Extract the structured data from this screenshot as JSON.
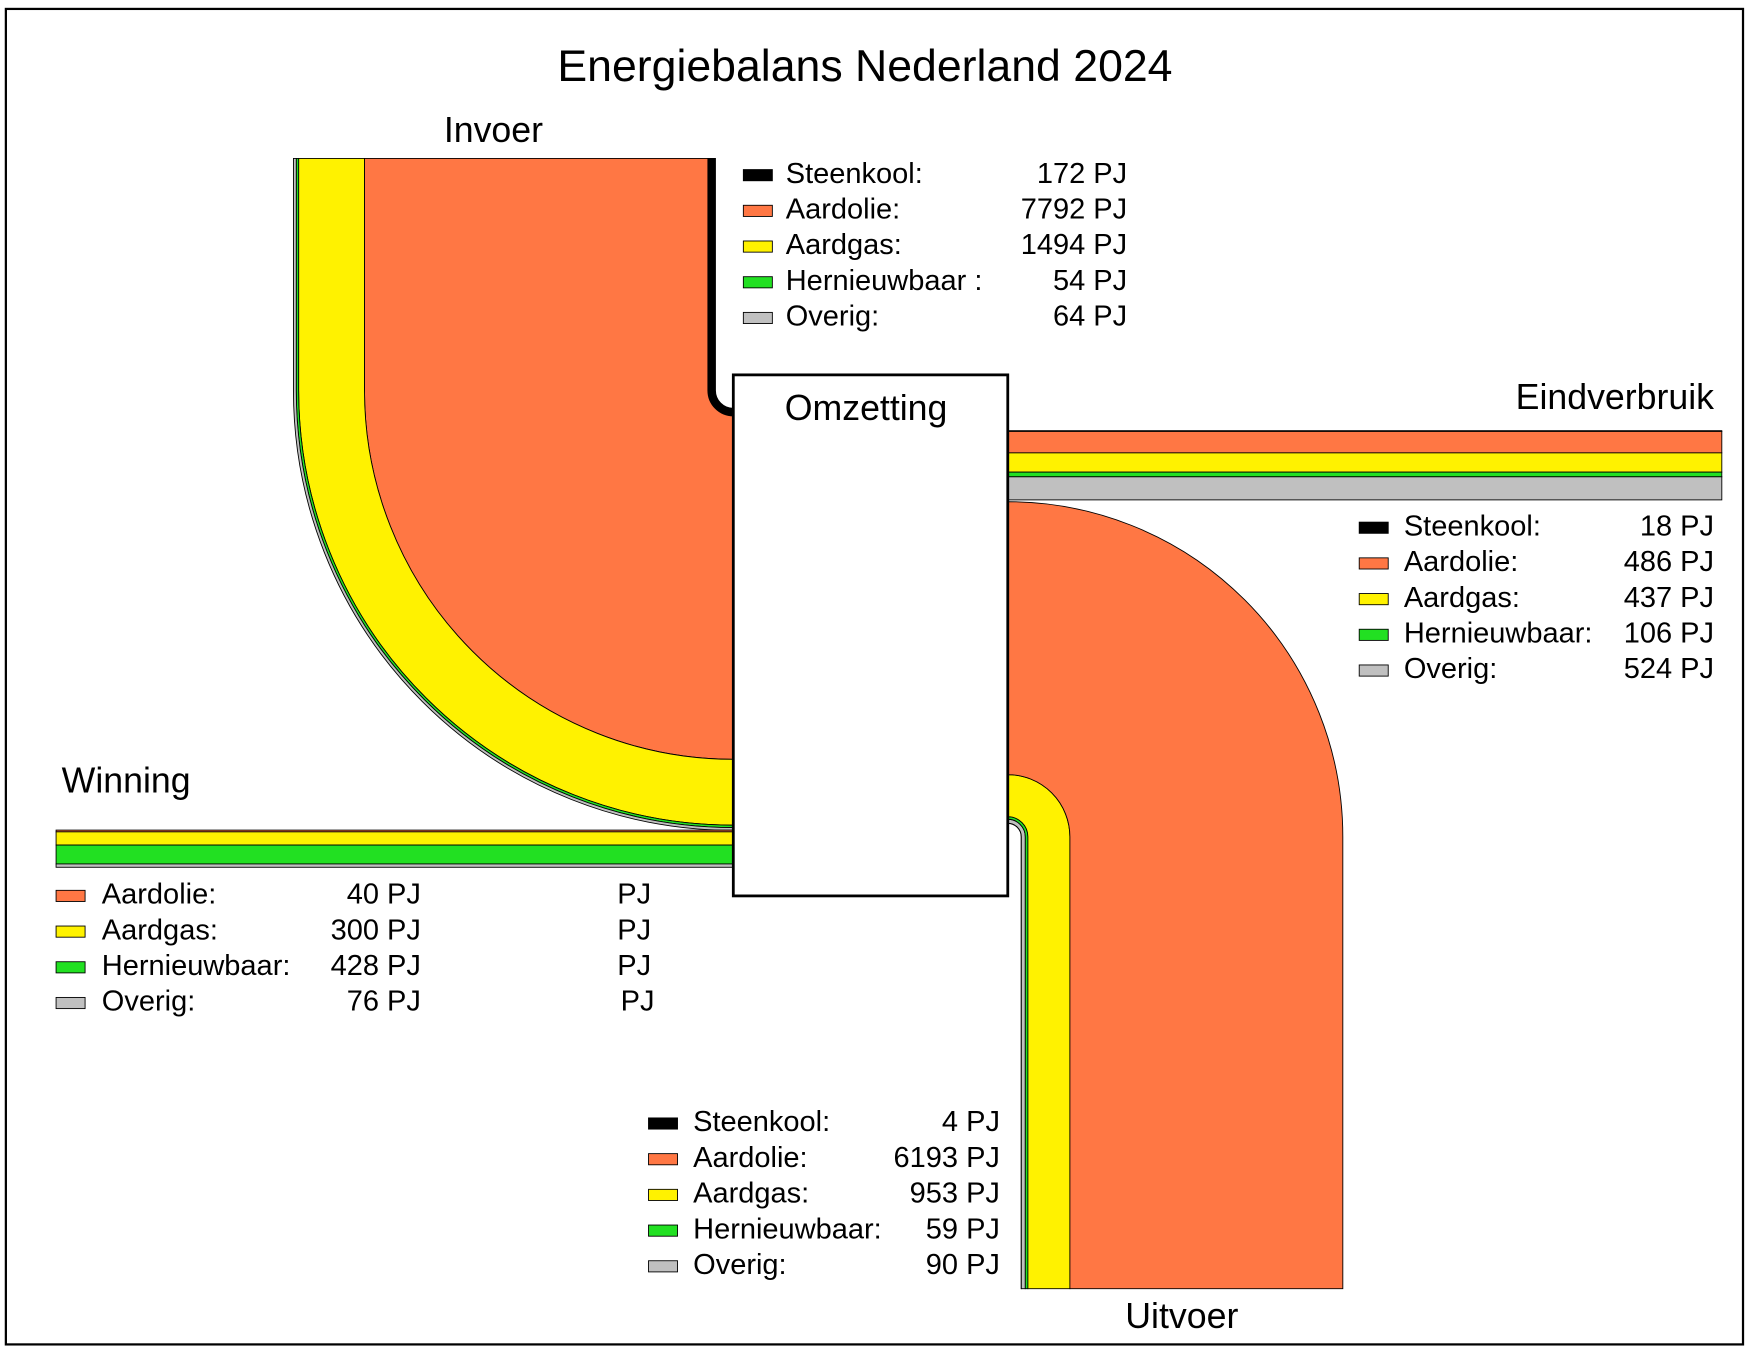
{
  "chart_data": {
    "type": "sankey",
    "title": "Energiebalans Nederland 2024",
    "center": "Omzetting",
    "flows": [
      {
        "label": "Invoer",
        "names": [
          "Steenkool:",
          "Aardolie:",
          "Aardgas:",
          "Hernieuwbaar :",
          "Overig:"
        ],
        "colors": [
          "#000000",
          "#ff7744",
          "#fff200",
          "#22e022",
          "#c0c0c0"
        ],
        "values": [
          172,
          7792,
          1494,
          54,
          64
        ],
        "value_labels": [
          "172 PJ",
          "7792 PJ",
          "1494 PJ",
          "54 PJ",
          "64 PJ"
        ]
      },
      {
        "label": "Eindverbruik",
        "names": [
          "Steenkool:",
          "Aardolie:",
          "Aardgas:",
          "Hernieuwbaar:",
          "Overig:"
        ],
        "colors": [
          "#000000",
          "#ff7744",
          "#fff200",
          "#22e022",
          "#c0c0c0"
        ],
        "values": [
          18,
          486,
          437,
          106,
          524
        ],
        "value_labels": [
          "18 PJ",
          "486 PJ",
          "437 PJ",
          "106 PJ",
          "524 PJ"
        ]
      },
      {
        "label": "Winning",
        "names": [
          "Aardolie:",
          "Aardgas:",
          "Hernieuwbaar:",
          "Overig:"
        ],
        "colors": [
          "#ff7744",
          "#fff200",
          "#22e022",
          "#c0c0c0"
        ],
        "values": [
          40,
          300,
          428,
          76
        ],
        "value_labels": [
          "40 PJ",
          "300 PJ",
          "428 PJ",
          "76 PJ"
        ],
        "extra_labels": [
          "PJ",
          "PJ",
          "PJ",
          "PJ"
        ]
      },
      {
        "label": "Uitvoer",
        "names": [
          "Steenkool:",
          "Aardolie:",
          "Aardgas:",
          "Hernieuwbaar:",
          "Overig:"
        ],
        "colors": [
          "#000000",
          "#ff7744",
          "#fff200",
          "#22e022",
          "#c0c0c0"
        ],
        "values": [
          4,
          6193,
          953,
          59,
          90
        ],
        "value_labels": [
          "4 PJ",
          "6193 PJ",
          "953 PJ",
          "59 PJ",
          "90 PJ"
        ]
      }
    ]
  }
}
